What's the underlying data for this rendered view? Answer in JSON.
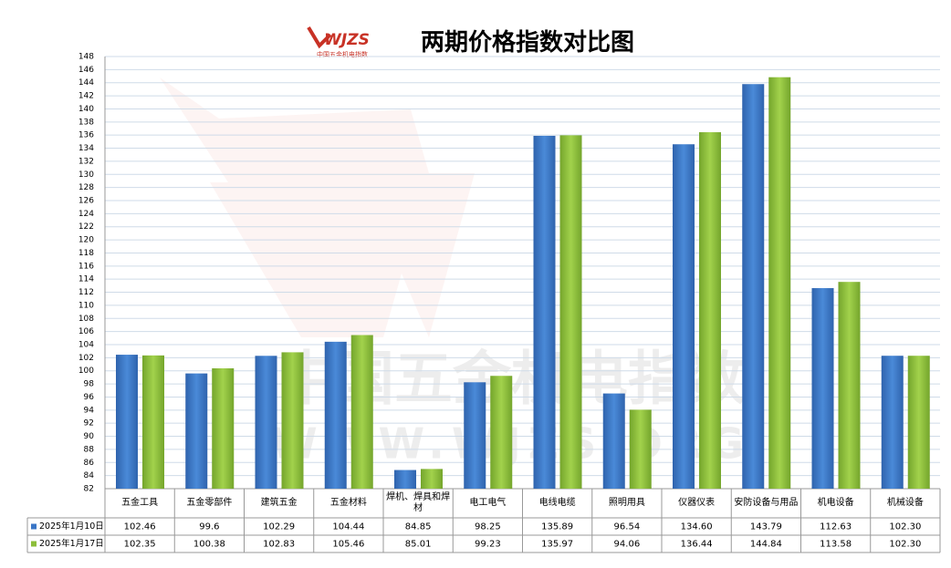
{
  "chart_data": {
    "type": "bar",
    "title": "两期价格指数对比图",
    "logo": {
      "mark": "WJZS",
      "caption": "中国五金机电指数"
    },
    "watermark": {
      "line1": "中国五金机电指数",
      "line2": "WWW.WJZS.ORG"
    },
    "categories": [
      "五金工具",
      "五金零部件",
      "建筑五金",
      "五金材料",
      "焊机、焊具和焊材",
      "电工电气",
      "电线电缆",
      "照明用具",
      "仪器仪表",
      "安防设备与用品",
      "机电设备",
      "机械设备"
    ],
    "series": [
      {
        "name": "2025年1月10日",
        "color": "#3a76c6",
        "values": [
          102.46,
          99.6,
          102.29,
          104.44,
          84.85,
          98.25,
          135.89,
          96.54,
          134.6,
          143.79,
          112.63,
          102.3
        ],
        "value_labels": [
          "102.46",
          "99.6",
          "102.29",
          "104.44",
          "84.85",
          "98.25",
          "135.89",
          "96.54",
          "134.60",
          "143.79",
          "112.63",
          "102.30"
        ]
      },
      {
        "name": "2025年1月17日",
        "color": "#8cbe3a",
        "values": [
          102.35,
          100.38,
          102.83,
          105.46,
          85.01,
          99.23,
          135.97,
          94.06,
          136.44,
          144.84,
          113.58,
          102.3
        ],
        "value_labels": [
          "102.35",
          "100.38",
          "102.83",
          "105.46",
          "85.01",
          "99.23",
          "135.97",
          "94.06",
          "136.44",
          "144.84",
          "113.58",
          "102.30"
        ]
      }
    ],
    "ylim": [
      82,
      148
    ],
    "yticks": [
      82,
      84,
      86,
      88,
      90,
      92,
      94,
      96,
      98,
      100,
      102,
      104,
      106,
      108,
      110,
      112,
      114,
      116,
      118,
      120,
      122,
      124,
      126,
      128,
      130,
      132,
      134,
      136,
      138,
      140,
      142,
      144,
      146,
      148
    ],
    "grid": true
  }
}
